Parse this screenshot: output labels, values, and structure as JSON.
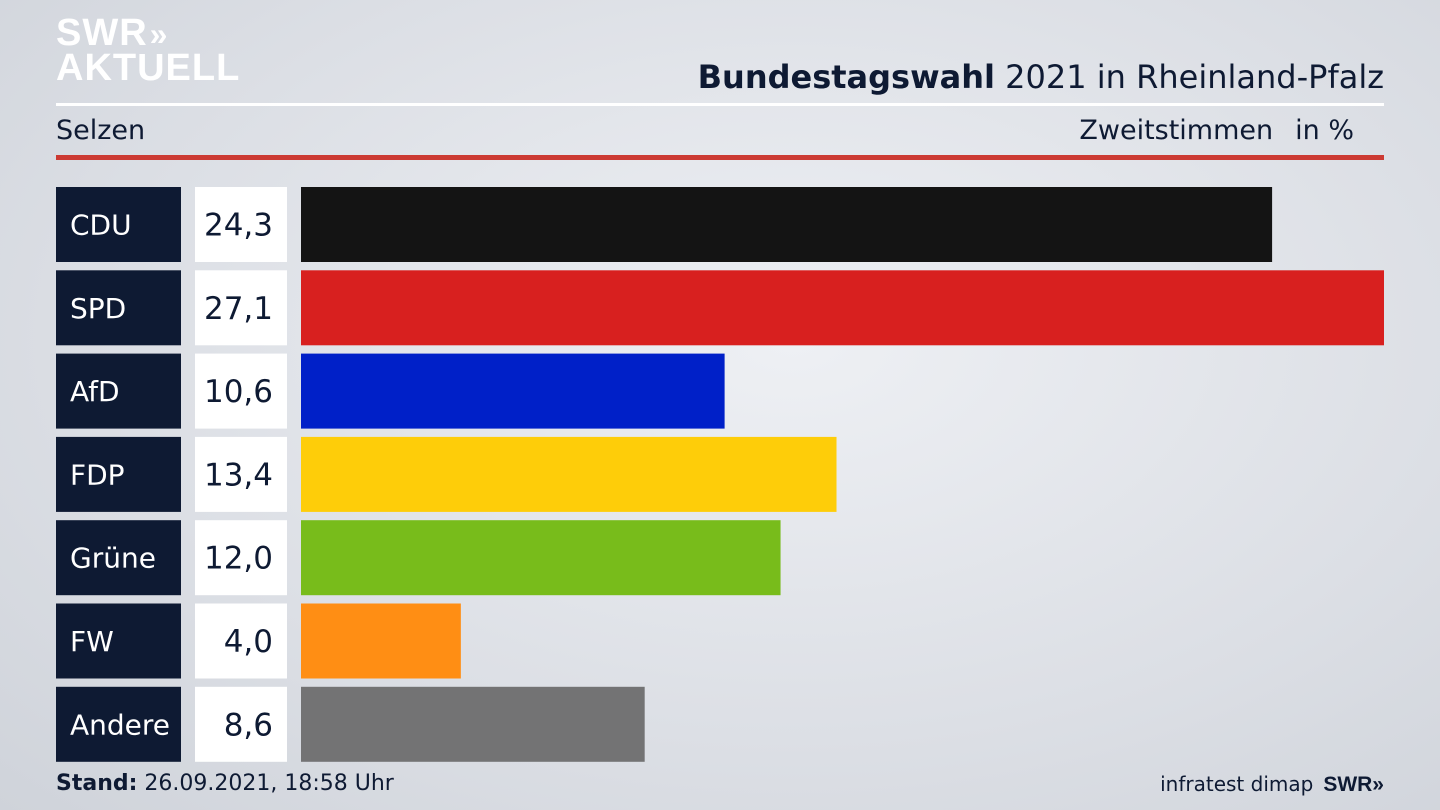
{
  "brand": {
    "line1": "SWR",
    "line1_mark": "»",
    "line2": "AKTUELL",
    "colors": {
      "navy": "#0e1a33",
      "red_rule": "#cc3a33"
    }
  },
  "header": {
    "title_bold": "Bundestagswahl",
    "title_rest": " 2021 in Rheinland-Pfalz"
  },
  "subheader": {
    "left": "Selzen",
    "right_label": "Zweitstimmen",
    "right_unit": "in %"
  },
  "footer": {
    "stand_label": "Stand:",
    "stand_value": " 26.09.2021, 18:58 Uhr",
    "source": "infratest dimap",
    "source_logo": "SWR»"
  },
  "chart_data": {
    "type": "bar",
    "orientation": "horizontal",
    "categories": [
      "CDU",
      "SPD",
      "AfD",
      "FDP",
      "Grüne",
      "FW",
      "Andere"
    ],
    "values": [
      24.3,
      27.1,
      10.6,
      13.4,
      12.0,
      4.0,
      8.6
    ],
    "value_labels": [
      "24,3",
      "27,1",
      "10,6",
      "13,4",
      "12,0",
      "4,0",
      "8,6"
    ],
    "colors": [
      "#141414",
      "#d8201f",
      "#0020c8",
      "#fecd09",
      "#78bc1b",
      "#ff8e14",
      "#737374"
    ],
    "xlim": [
      0,
      27.1
    ],
    "grid": false
  }
}
